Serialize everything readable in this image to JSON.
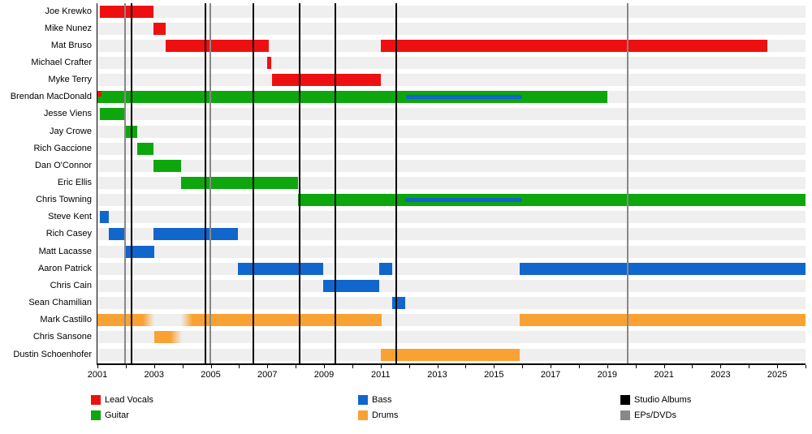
{
  "colors": {
    "red": "#EE1010",
    "green": "#0DA70D",
    "blue": "#1166CC",
    "orange": "#F9A233",
    "black": "#000000",
    "gray": "#888888",
    "row_band": "#EFEFEF"
  },
  "legend": {
    "items": [
      {
        "label": "Lead Vocals",
        "color": "red"
      },
      {
        "label": "Guitar",
        "color": "green"
      },
      {
        "label": "Bass",
        "color": "blue"
      },
      {
        "label": "Drums",
        "color": "orange"
      },
      {
        "label": "Studio Albums",
        "color": "black"
      },
      {
        "label": "EPs/DVDs",
        "color": "gray"
      }
    ]
  },
  "chart_data": {
    "type": "timeline",
    "x_axis": {
      "start": 2001,
      "end": 2026,
      "tick_step": 1,
      "labels": [
        "2001",
        "2003",
        "2005",
        "2007",
        "2009",
        "2011",
        "2013",
        "2015",
        "2017",
        "2019",
        "2021",
        "2023",
        "2025"
      ],
      "label_years": [
        2001,
        2003,
        2005,
        2007,
        2009,
        2011,
        2013,
        2015,
        2017,
        2019,
        2021,
        2023,
        2025
      ]
    },
    "members": [
      {
        "name": "Joe Krewko",
        "segments": [
          {
            "role": "Lead Vocals",
            "color": "red",
            "start": 2001.1,
            "end": 2002.98
          }
        ]
      },
      {
        "name": "Mike Nunez",
        "segments": [
          {
            "role": "Lead Vocals",
            "color": "red",
            "start": 2002.98,
            "end": 2003.4
          }
        ]
      },
      {
        "name": "Mat Bruso",
        "segments": [
          {
            "role": "Lead Vocals",
            "color": "red",
            "start": 2003.4,
            "end": 2007.05
          },
          {
            "role": "Lead Vocals",
            "color": "red",
            "start": 2011.0,
            "end": 2024.65
          }
        ]
      },
      {
        "name": "Michael Crafter",
        "segments": [
          {
            "role": "Lead Vocals",
            "color": "red",
            "start": 2007.0,
            "end": 2007.15
          }
        ]
      },
      {
        "name": "Myke Terry",
        "segments": [
          {
            "role": "Lead Vocals",
            "color": "red",
            "start": 2007.15,
            "end": 2011.0
          }
        ]
      },
      {
        "name": "Brendan MacDonald",
        "segments": [
          {
            "role": "Guitar",
            "color": "green",
            "start": 2001.0,
            "end": 2019.0
          }
        ],
        "vocal_mark": {
          "role": "Lead Vocals",
          "color": "red",
          "start": 2001.0,
          "end": 2001.15
        },
        "bass_stripe": {
          "role": "Bass",
          "color": "blue",
          "start": 2011.9,
          "end": 2016.0
        }
      },
      {
        "name": "Jesse Viens",
        "segments": [
          {
            "role": "Guitar",
            "color": "green",
            "start": 2001.1,
            "end": 2001.98
          }
        ]
      },
      {
        "name": "Jay Crowe",
        "segments": [
          {
            "role": "Guitar",
            "color": "green",
            "start": 2001.98,
            "end": 2002.4
          }
        ]
      },
      {
        "name": "Rich Gaccione",
        "segments": [
          {
            "role": "Guitar",
            "color": "green",
            "start": 2002.4,
            "end": 2002.98
          }
        ]
      },
      {
        "name": "Dan O'Connor",
        "segments": [
          {
            "role": "Guitar",
            "color": "green",
            "start": 2002.98,
            "end": 2003.95
          }
        ]
      },
      {
        "name": "Eric Ellis",
        "segments": [
          {
            "role": "Guitar",
            "color": "green",
            "start": 2003.95,
            "end": 2008.08
          }
        ]
      },
      {
        "name": "Chris Towning",
        "segments": [
          {
            "role": "Guitar",
            "color": "green",
            "start": 2008.08,
            "end": 2026.0
          }
        ],
        "bass_stripe": {
          "role": "Bass",
          "color": "blue",
          "start": 2011.87,
          "end": 2016.0
        }
      },
      {
        "name": "Steve Kent",
        "segments": [
          {
            "role": "Bass",
            "color": "blue",
            "start": 2001.08,
            "end": 2001.4
          }
        ]
      },
      {
        "name": "Rich Casey",
        "segments": [
          {
            "role": "Bass",
            "color": "blue",
            "start": 2001.4,
            "end": 2001.97
          },
          {
            "role": "Bass",
            "color": "blue",
            "start": 2002.98,
            "end": 2005.96
          }
        ]
      },
      {
        "name": "Matt Lacasse",
        "segments": [
          {
            "role": "Bass",
            "color": "blue",
            "start": 2001.97,
            "end": 2003.0
          }
        ]
      },
      {
        "name": "Aaron Patrick",
        "segments": [
          {
            "role": "Bass",
            "color": "blue",
            "start": 2005.96,
            "end": 2008.97
          },
          {
            "role": "Bass",
            "color": "blue",
            "start": 2010.95,
            "end": 2011.4
          },
          {
            "role": "Bass",
            "color": "blue",
            "start": 2015.9,
            "end": 2026.0
          }
        ]
      },
      {
        "name": "Chris Cain",
        "segments": [
          {
            "role": "Bass",
            "color": "blue",
            "start": 2008.97,
            "end": 2010.95
          }
        ]
      },
      {
        "name": "Sean Chamilian",
        "segments": [
          {
            "role": "Bass",
            "color": "blue",
            "start": 2011.4,
            "end": 2011.87
          }
        ]
      },
      {
        "name": "Mark Castillo",
        "segments": [
          {
            "role": "Drums",
            "color": "orange",
            "start": 2001.0,
            "end": 2003.0,
            "fade": "out"
          },
          {
            "role": "Drums",
            "color": "orange",
            "start": 2003.95,
            "end": 2011.03,
            "fade": "in"
          },
          {
            "role": "Drums",
            "color": "orange",
            "start": 2015.9,
            "end": 2026.0
          }
        ]
      },
      {
        "name": "Chris Sansone",
        "segments": [
          {
            "role": "Drums",
            "color": "orange",
            "start": 2003.0,
            "end": 2003.98,
            "fade": "out"
          }
        ]
      },
      {
        "name": "Dustin Schoenhofer",
        "segments": [
          {
            "role": "Drums",
            "color": "orange",
            "start": 2011.0,
            "end": 2015.9
          }
        ]
      }
    ],
    "album_lines": {
      "label": "Studio Albums",
      "color": "black",
      "years": [
        2002.2,
        2004.8,
        2006.5,
        2008.13,
        2009.4,
        2011.55
      ]
    },
    "ep_lines": {
      "label": "EPs/DVDs",
      "color": "gray",
      "years": [
        2001.98,
        2004.98,
        2019.72
      ]
    }
  }
}
